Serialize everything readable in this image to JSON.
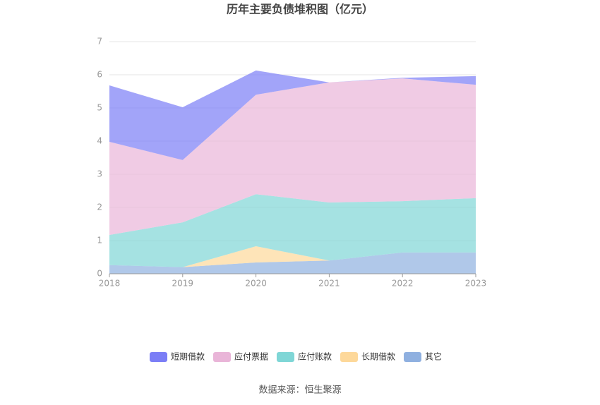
{
  "chart_data": {
    "type": "area",
    "stacked": true,
    "title": "历年主要负债堆积图（亿元）",
    "categories": [
      "2018",
      "2019",
      "2020",
      "2021",
      "2022",
      "2023"
    ],
    "series": [
      {
        "name": "其它",
        "color": "#8fb0e0",
        "values": [
          0.26,
          0.2,
          0.34,
          0.4,
          0.64,
          0.64
        ]
      },
      {
        "name": "长期借款",
        "color": "#fdd89a",
        "values": [
          0,
          0,
          0.49,
          0,
          0,
          0
        ]
      },
      {
        "name": "应付账款",
        "color": "#7fd6d6",
        "values": [
          0.91,
          1.35,
          1.57,
          1.75,
          1.55,
          1.64
        ]
      },
      {
        "name": "应付票据",
        "color": "#e9b5d8",
        "values": [
          2.81,
          1.88,
          3.0,
          3.62,
          3.7,
          3.42
        ]
      },
      {
        "name": "短期借款",
        "color": "#7b7ef6",
        "values": [
          1.7,
          1.59,
          0.73,
          0.0,
          0.02,
          0.26
        ]
      }
    ],
    "ylim": [
      0,
      7
    ],
    "yticks": [
      0,
      1,
      2,
      3,
      4,
      5,
      6,
      7
    ],
    "grid": true,
    "legend": "bottom",
    "source": "数据来源：恒生聚源"
  }
}
